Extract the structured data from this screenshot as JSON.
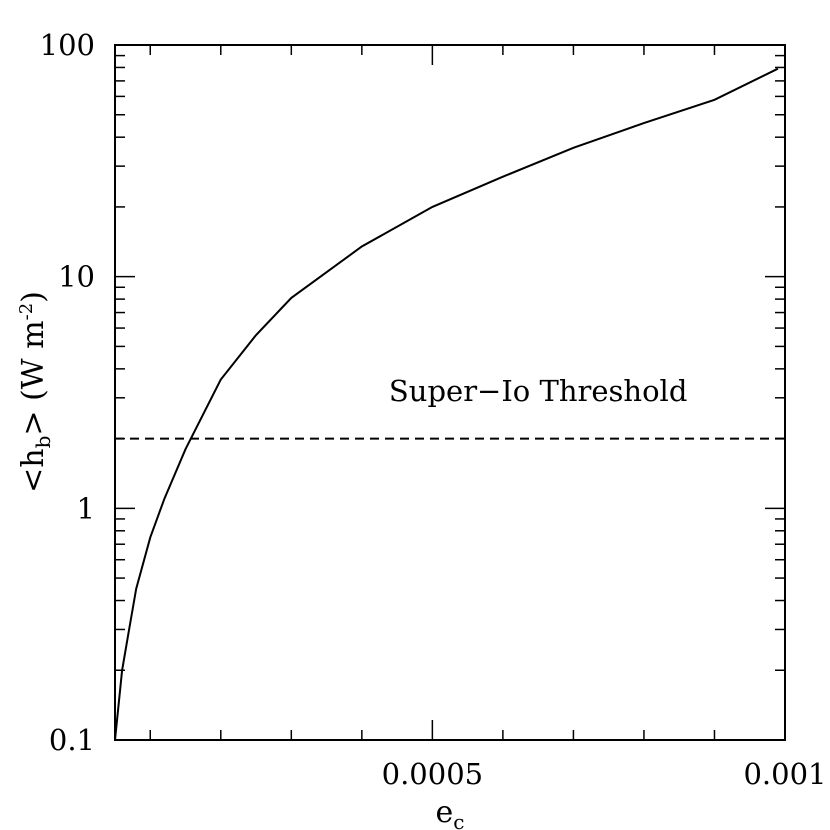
{
  "chart_data": {
    "type": "line",
    "title": "",
    "xlabel": "e",
    "xlabel_subscript": "c",
    "ylabel_parts": [
      "<h",
      "b",
      "> (W m",
      "-2",
      ")"
    ],
    "x_scale": "linear",
    "y_scale": "log",
    "xlim": [
      5e-05,
      0.001
    ],
    "ylim": [
      0.1,
      100
    ],
    "x_tick_labels": [
      {
        "value": 0.0005,
        "label": "0.0005"
      },
      {
        "value": 0.001,
        "label": "0.001"
      }
    ],
    "y_tick_labels": [
      {
        "value": 0.1,
        "label": "0.1"
      },
      {
        "value": 1,
        "label": "1"
      },
      {
        "value": 10,
        "label": "10"
      },
      {
        "value": 100,
        "label": "100"
      }
    ],
    "x_minor_step": 0.0001,
    "grid": false,
    "series": [
      {
        "style": "solid",
        "x": [
          5e-05,
          6e-05,
          7e-05,
          8e-05,
          0.0001,
          0.00012,
          0.00015,
          0.0002,
          0.00025,
          0.0003,
          0.0004,
          0.0005,
          0.0006,
          0.0007,
          0.0008,
          0.0009,
          0.00099
        ],
        "y": [
          0.1,
          0.2,
          0.3,
          0.45,
          0.75,
          1.1,
          1.8,
          3.6,
          5.6,
          8.1,
          13.5,
          20,
          27,
          36,
          46,
          58,
          79
        ]
      },
      {
        "style": "dashed",
        "x": [
          5e-05,
          0.001
        ],
        "y": [
          2.0,
          2.0
        ]
      }
    ],
    "annotations": [
      {
        "text": "Super−Io Threshold",
        "x": 0.00065,
        "y": 2.9
      }
    ]
  }
}
